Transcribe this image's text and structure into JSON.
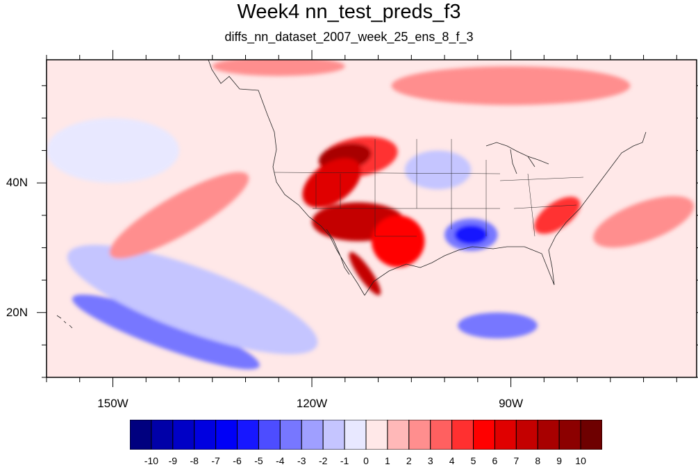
{
  "title": "Week4 nn_test_preds_f3",
  "subtitle": "diffs_nn_dataset_2007_week_25_ens_8_f_3",
  "map": {
    "projection": "cylindrical-equidistant",
    "lon_range": [
      -160,
      -62
    ],
    "lat_range": [
      10,
      59
    ],
    "lon_ticks": [
      {
        "lon": -150,
        "label": "150W"
      },
      {
        "lon": -120,
        "label": "120W"
      },
      {
        "lon": -90,
        "label": "90W"
      }
    ],
    "lat_ticks": [
      {
        "lat": 40,
        "label": "40N"
      },
      {
        "lat": 20,
        "label": "20N"
      }
    ],
    "field_regions": [
      {
        "level": 4,
        "lon": -113,
        "lat": 44,
        "rx": 6,
        "ry": 3,
        "rot": -10
      },
      {
        "level": 8,
        "lon": -115,
        "lat": 44,
        "rx": 4,
        "ry": 2,
        "rot": -10
      },
      {
        "level": 6,
        "lon": -117,
        "lat": 40,
        "rx": 5,
        "ry": 3,
        "rot": -35
      },
      {
        "level": 7,
        "lon": -113,
        "lat": 34,
        "rx": 7,
        "ry": 3,
        "rot": 0
      },
      {
        "level": 5,
        "lon": -107,
        "lat": 31,
        "rx": 4,
        "ry": 4,
        "rot": 0
      },
      {
        "level": 7,
        "lon": -112,
        "lat": 26,
        "rx": 1,
        "ry": 4,
        "rot": -35
      },
      {
        "level": -4,
        "lon": -96,
        "lat": 32,
        "rx": 4,
        "ry": 2.5,
        "rot": 0
      },
      {
        "level": -6,
        "lon": -96,
        "lat": 32,
        "rx": 2.5,
        "ry": 1.5,
        "rot": 0
      },
      {
        "level": -2,
        "lon": -101,
        "lat": 42,
        "rx": 5,
        "ry": 3,
        "rot": 0
      },
      {
        "level": 4,
        "lon": -83,
        "lat": 35,
        "rx": 4,
        "ry": 2,
        "rot": -35
      },
      {
        "level": 2,
        "lon": -90,
        "lat": 55,
        "rx": 18,
        "ry": 3,
        "rot": 0
      },
      {
        "level": 2,
        "lon": -125,
        "lat": 58,
        "rx": 10,
        "ry": 1.5,
        "rot": 0
      },
      {
        "level": -4,
        "lon": -142,
        "lat": 17,
        "rx": 15,
        "ry": 2.5,
        "rot": 20
      },
      {
        "level": -2,
        "lon": -138,
        "lat": 22,
        "rx": 20,
        "ry": 5,
        "rot": 20
      },
      {
        "level": -1,
        "lon": -150,
        "lat": 45,
        "rx": 10,
        "ry": 5,
        "rot": 0
      },
      {
        "level": 2,
        "lon": -140,
        "lat": 35,
        "rx": 12,
        "ry": 3,
        "rot": -30
      },
      {
        "level": -4,
        "lon": -92,
        "lat": 18,
        "rx": 6,
        "ry": 2,
        "rot": 0
      },
      {
        "level": 2,
        "lon": -70,
        "lat": 34,
        "rx": 8,
        "ry": 3,
        "rot": -20
      }
    ]
  },
  "colorbar": {
    "colors": [
      "#00007f",
      "#0000a8",
      "#0000c6",
      "#0000e0",
      "#0000f7",
      "#1717ff",
      "#4d4dff",
      "#7777ff",
      "#9f9fff",
      "#c5c5ff",
      "#e8e8ff",
      "#ffe8e8",
      "#ffb8b8",
      "#ff8e8e",
      "#ff6060",
      "#ff3030",
      "#ff0000",
      "#e00000",
      "#c40000",
      "#a80000",
      "#8c0000",
      "#6e0000"
    ],
    "labels": [
      "-10",
      "-9",
      "-8",
      "-7",
      "-6",
      "-5",
      "-4",
      "-3",
      "-2",
      "-1",
      "0",
      "1",
      "2",
      "3",
      "4",
      "5",
      "6",
      "7",
      "8",
      "9",
      "10"
    ]
  }
}
